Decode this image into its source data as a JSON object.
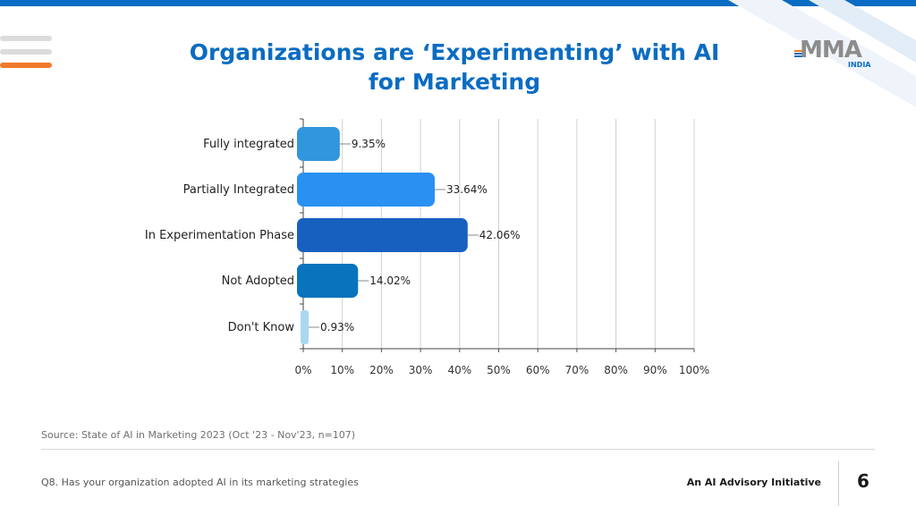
{
  "slide": {
    "title_line1": "Organizations are ‘Experimenting’ with AI",
    "title_line2": "for Marketing",
    "source": "Source: State of AI in Marketing 2023 (Oct '23 - Nov'23, n=107)",
    "question": "Q8. Has your organization adopted AI in its marketing strategies",
    "initiative": "An AI Advisory Initiative",
    "page_number": "6"
  },
  "logo": {
    "main": "MMA",
    "sub": "INDIA"
  },
  "colors": {
    "accent": "#0a6cc2",
    "menu_line1": "#dcdcdc",
    "menu_line2": "#dcdcdc",
    "menu_line3": "#f07a2a",
    "logo_bar1": "#f07a2a",
    "logo_bar2": "#0a6cc2",
    "logo_bar3": "#0a6cc2"
  },
  "chart_data": {
    "type": "bar",
    "orientation": "horizontal",
    "categories": [
      "Fully integrated",
      "Partially Integrated",
      "In Experimentation Phase",
      "Not Adopted",
      "Don't Know"
    ],
    "values": [
      9.35,
      33.64,
      42.06,
      14.02,
      0.93
    ],
    "value_labels": [
      "9.35%",
      "33.64%",
      "42.06%",
      "14.02%",
      "0.93%"
    ],
    "bar_colors": [
      "#3196dc",
      "#2a90f2",
      "#1860bf",
      "#0a73be",
      "#a9d8f0"
    ],
    "xlim": [
      0,
      100
    ],
    "x_ticks": [
      "0%",
      "10%",
      "20%",
      "30%",
      "40%",
      "50%",
      "60%",
      "70%",
      "80%",
      "90%",
      "100%"
    ],
    "grid": true,
    "legend": "none"
  }
}
